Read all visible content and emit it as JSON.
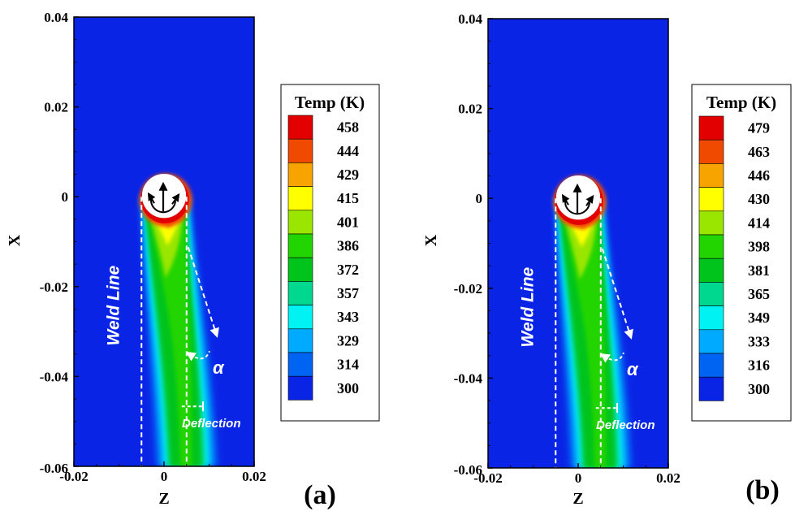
{
  "chart_data": [
    {
      "type": "heatmap",
      "panel_label": "(a)",
      "xlabel": "Z",
      "ylabel": "X",
      "xlim": [
        -0.02,
        0.02
      ],
      "ylim": [
        -0.06,
        0.04
      ],
      "x_ticks": [
        "-0.02",
        "0",
        "0.02"
      ],
      "y_ticks": [
        "0.04",
        "0.02",
        "0",
        "-0.02",
        "-0.04",
        "-0.06"
      ],
      "legend_title": "Temp (K)",
      "legend_levels": [
        "458",
        "444",
        "429",
        "415",
        "401",
        "386",
        "372",
        "357",
        "343",
        "329",
        "314",
        "300"
      ],
      "annotations": [
        "Weld Line",
        "α",
        "Deflection"
      ],
      "weld_line_z": -0.005,
      "deflected_path_z": 0.005,
      "tool_center": [
        0,
        0
      ]
    },
    {
      "type": "heatmap",
      "panel_label": "(b)",
      "xlabel": "Z",
      "ylabel": "X",
      "xlim": [
        -0.02,
        0.02
      ],
      "ylim": [
        -0.06,
        0.04
      ],
      "x_ticks": [
        "-0.02",
        "0",
        "0.02"
      ],
      "y_ticks": [
        "0.04",
        "0.02",
        "0",
        "-0.02",
        "-0.04",
        "-0.06"
      ],
      "legend_title": "Temp (K)",
      "legend_levels": [
        "479",
        "463",
        "446",
        "430",
        "414",
        "398",
        "381",
        "365",
        "349",
        "333",
        "316",
        "300"
      ],
      "annotations": [
        "Weld Line",
        "α",
        "Deflection"
      ],
      "weld_line_z": -0.005,
      "deflected_path_z": 0.005,
      "tool_center": [
        0,
        0
      ]
    }
  ],
  "colors": {
    "background": "#0a24e6",
    "levels": [
      "#e30000",
      "#f04a00",
      "#f7a300",
      "#ffff00",
      "#9ae600",
      "#22d400",
      "#00c41c",
      "#00d890",
      "#00f2f2",
      "#00aaff",
      "#0064f2",
      "#0a24e6"
    ]
  }
}
